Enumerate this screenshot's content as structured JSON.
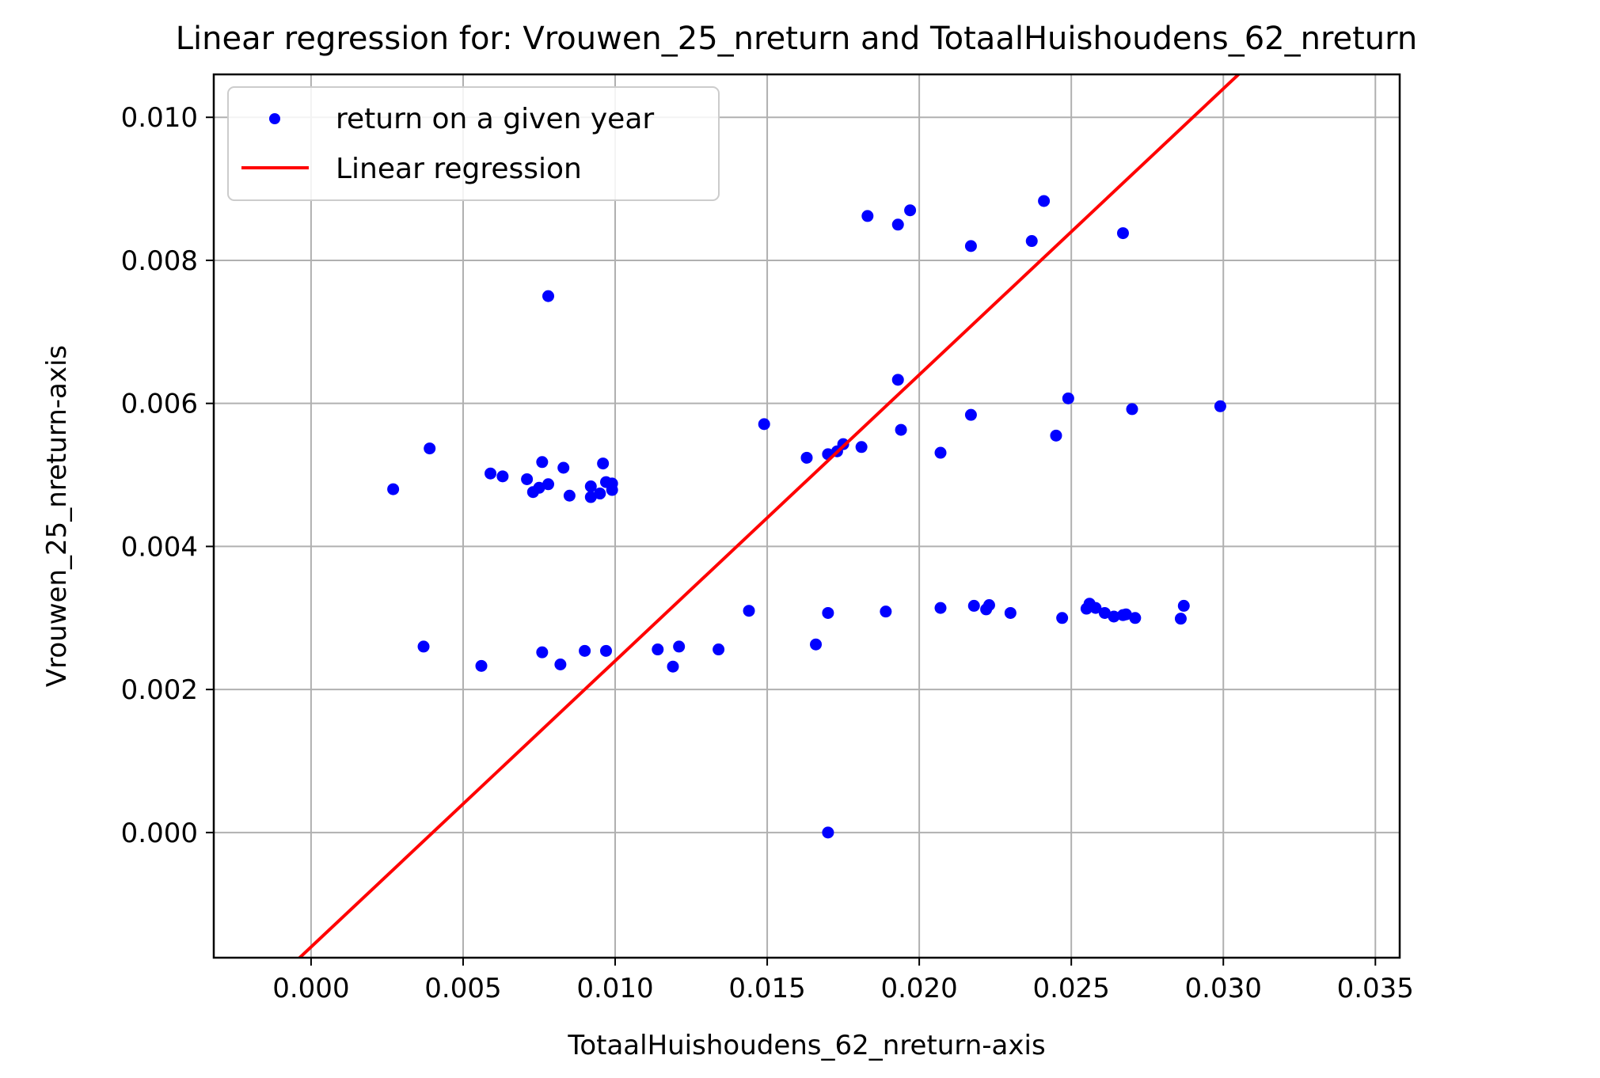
{
  "chart_data": {
    "type": "scatter",
    "title": "Linear regression for: Vrouwen_25_nreturn and TotaalHuishoudens_62_nreturn",
    "xlabel": "TotaalHuishoudens_62_nreturn-axis",
    "ylabel": "Vrouwen_25_nreturn-axis",
    "xlim": [
      -0.0032,
      0.0358
    ],
    "ylim": [
      -0.00175,
      0.0106
    ],
    "xticks": [
      0.0,
      0.005,
      0.01,
      0.015,
      0.02,
      0.025,
      0.03,
      0.035
    ],
    "xtick_labels": [
      "0.000",
      "0.005",
      "0.010",
      "0.015",
      "0.020",
      "0.025",
      "0.030",
      "0.035"
    ],
    "yticks": [
      0.0,
      0.002,
      0.004,
      0.006,
      0.008,
      0.01
    ],
    "ytick_labels": [
      "0.000",
      "0.002",
      "0.004",
      "0.006",
      "0.008",
      "0.010"
    ],
    "grid": true,
    "legend_position": "top-left",
    "series": [
      {
        "name": "return on a given year",
        "kind": "scatter",
        "color": "#0000ff",
        "points": [
          [
            0.0027,
            0.0048
          ],
          [
            0.0039,
            0.00537
          ],
          [
            0.0059,
            0.00502
          ],
          [
            0.0063,
            0.00498
          ],
          [
            0.0071,
            0.00494
          ],
          [
            0.0073,
            0.00476
          ],
          [
            0.0075,
            0.00482
          ],
          [
            0.0076,
            0.00518
          ],
          [
            0.0078,
            0.00487
          ],
          [
            0.0083,
            0.0051
          ],
          [
            0.0085,
            0.00471
          ],
          [
            0.0092,
            0.00469
          ],
          [
            0.0092,
            0.00484
          ],
          [
            0.0095,
            0.00474
          ],
          [
            0.0096,
            0.00516
          ],
          [
            0.0097,
            0.0049
          ],
          [
            0.0099,
            0.00479
          ],
          [
            0.0099,
            0.00488
          ],
          [
            0.0078,
            0.0075
          ],
          [
            0.0037,
            0.0026
          ],
          [
            0.0056,
            0.00233
          ],
          [
            0.0076,
            0.00252
          ],
          [
            0.0082,
            0.00235
          ],
          [
            0.009,
            0.00254
          ],
          [
            0.0097,
            0.00254
          ],
          [
            0.0114,
            0.00256
          ],
          [
            0.0119,
            0.00232
          ],
          [
            0.0121,
            0.0026
          ],
          [
            0.0134,
            0.00256
          ],
          [
            0.0144,
            0.0031
          ],
          [
            0.0166,
            0.00263
          ],
          [
            0.017,
            0.00307
          ],
          [
            0.0189,
            0.00309
          ],
          [
            0.0207,
            0.00314
          ],
          [
            0.0218,
            0.00317
          ],
          [
            0.0222,
            0.00312
          ],
          [
            0.0223,
            0.00318
          ],
          [
            0.023,
            0.00307
          ],
          [
            0.0247,
            0.003
          ],
          [
            0.0255,
            0.00313
          ],
          [
            0.0256,
            0.0032
          ],
          [
            0.0258,
            0.00314
          ],
          [
            0.0261,
            0.00307
          ],
          [
            0.0264,
            0.00302
          ],
          [
            0.0267,
            0.00304
          ],
          [
            0.0268,
            0.00305
          ],
          [
            0.0271,
            0.003
          ],
          [
            0.0286,
            0.00299
          ],
          [
            0.0287,
            0.00317
          ],
          [
            0.0149,
            0.00571
          ],
          [
            0.0163,
            0.00524
          ],
          [
            0.017,
            0.00529
          ],
          [
            0.0173,
            0.00533
          ],
          [
            0.0175,
            0.00543
          ],
          [
            0.0181,
            0.00539
          ],
          [
            0.0193,
            0.00633
          ],
          [
            0.0194,
            0.00563
          ],
          [
            0.0207,
            0.00531
          ],
          [
            0.0217,
            0.00584
          ],
          [
            0.0245,
            0.00555
          ],
          [
            0.0249,
            0.00607
          ],
          [
            0.027,
            0.00592
          ],
          [
            0.0299,
            0.00596
          ],
          [
            0.0183,
            0.00862
          ],
          [
            0.0193,
            0.0085
          ],
          [
            0.0197,
            0.0087
          ],
          [
            0.0217,
            0.0082
          ],
          [
            0.0237,
            0.00827
          ],
          [
            0.0241,
            0.00883
          ],
          [
            0.0267,
            0.00838
          ],
          [
            0.017,
            0.0
          ]
        ]
      },
      {
        "name": "Linear regression",
        "kind": "line",
        "color": "#ff0000",
        "line": {
          "slope": 0.4,
          "intercept": -0.0016
        }
      }
    ]
  }
}
